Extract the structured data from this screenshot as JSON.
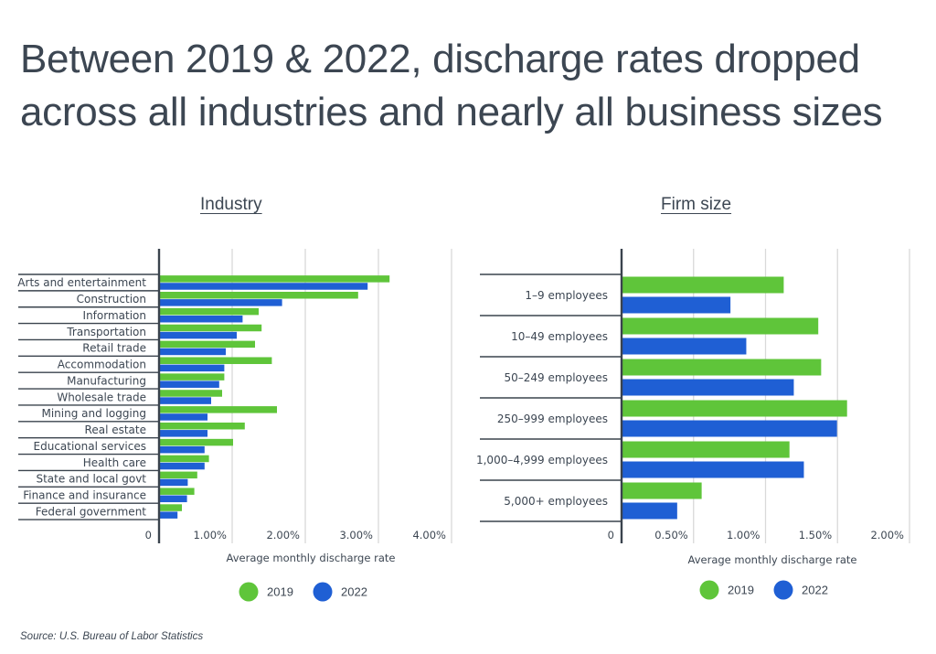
{
  "title": "Between 2019 & 2022, discharge rates dropped across all industries and nearly all business sizes",
  "source": "Source:  U.S. Bureau of Labor Statistics",
  "colors": {
    "2019": "#5fc53a",
    "2022": "#1f5fd4",
    "axis": "#3a434d",
    "grid": "#d9d9d9",
    "text": "#3c4652"
  },
  "chart_data": [
    {
      "type": "bar",
      "orientation": "horizontal",
      "title": "Industry",
      "xlabel": "Average monthly discharge rate",
      "ylabel": "",
      "xlim": [
        0,
        4.0
      ],
      "x_ticks": [
        "0",
        "1.00%",
        "2.00%",
        "3.00%",
        "4.00%"
      ],
      "x_tick_values": [
        0,
        1,
        2,
        3,
        4
      ],
      "grid": true,
      "legend": {
        "placement": "bottom-center",
        "entries": [
          "2019",
          "2022"
        ]
      },
      "unit": "%",
      "categories": [
        "Arts and entertainment",
        "Construction",
        "Information",
        "Transportation",
        "Retail trade",
        "Accommodation",
        "Manufacturing",
        "Wholesale trade",
        "Mining and logging",
        "Real estate",
        "Educational services",
        "Health care",
        "State and local govt",
        "Finance and insurance",
        "Federal government"
      ],
      "series": [
        {
          "name": "2019",
          "values": [
            3.14,
            2.71,
            1.35,
            1.39,
            1.3,
            1.53,
            0.88,
            0.85,
            1.6,
            1.16,
            1.0,
            0.67,
            0.51,
            0.47,
            0.3
          ]
        },
        {
          "name": "2022",
          "values": [
            2.84,
            1.67,
            1.13,
            1.05,
            0.9,
            0.88,
            0.81,
            0.7,
            0.65,
            0.65,
            0.61,
            0.61,
            0.38,
            0.37,
            0.24
          ]
        }
      ]
    },
    {
      "type": "bar",
      "orientation": "horizontal",
      "title": "Firm size",
      "xlabel": "Average monthly discharge rate",
      "ylabel": "",
      "xlim": [
        0,
        2.0
      ],
      "x_ticks": [
        "0",
        "0.50%",
        "1.00%",
        "1.50%",
        "2.00%"
      ],
      "x_tick_values": [
        0,
        0.5,
        1.0,
        1.5,
        2.0
      ],
      "grid": true,
      "legend": {
        "placement": "bottom-center",
        "entries": [
          "2019",
          "2022"
        ]
      },
      "unit": "%",
      "categories": [
        "1–9 employees",
        "10–49 employees",
        "50–249 employees",
        "250–999 employees",
        "1,000–4,999 employees",
        "5,000+ employees"
      ],
      "series": [
        {
          "name": "2019",
          "values": [
            1.12,
            1.36,
            1.38,
            1.56,
            1.16,
            0.55
          ]
        },
        {
          "name": "2022",
          "values": [
            0.75,
            0.86,
            1.19,
            1.49,
            1.26,
            0.38
          ]
        }
      ]
    }
  ]
}
